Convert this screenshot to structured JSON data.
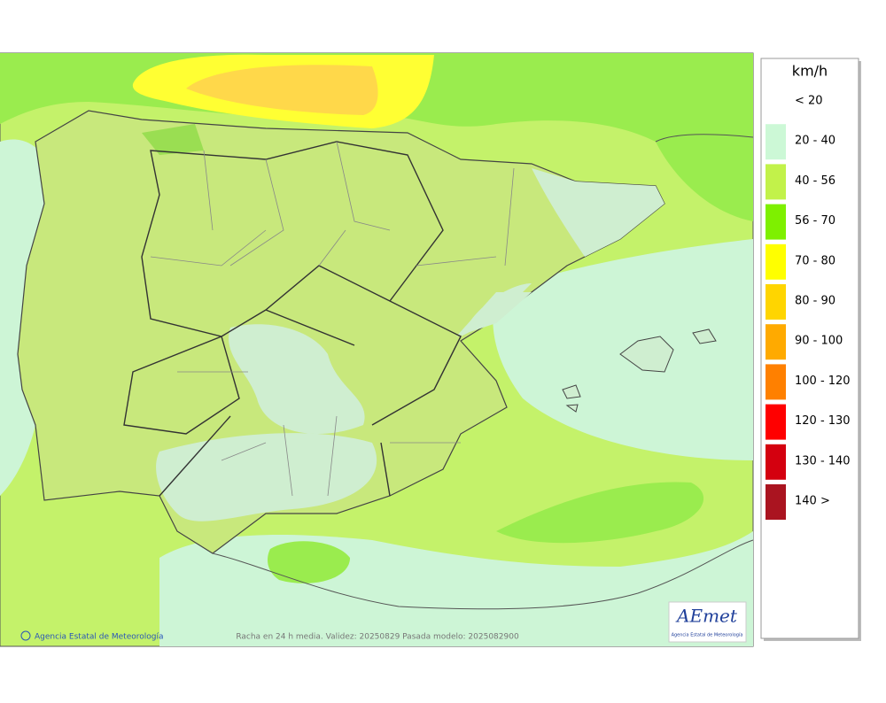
{
  "legend": {
    "title": "km/h",
    "items": [
      {
        "label": "< 20",
        "color": "#ffffff"
      },
      {
        "label": "20 - 40",
        "color": "#ccf8d6"
      },
      {
        "label": "40 - 56",
        "color": "#c2f24a"
      },
      {
        "label": "56 - 70",
        "color": "#7ef000"
      },
      {
        "label": "70 - 80",
        "color": "#ffff00"
      },
      {
        "label": "80 - 90",
        "color": "#ffd500"
      },
      {
        "label": "90 - 100",
        "color": "#ffaa00"
      },
      {
        "label": "100 - 120",
        "color": "#ff8000"
      },
      {
        "label": "120 - 130",
        "color": "#ff0000"
      },
      {
        "label": "130 - 140",
        "color": "#d4000f"
      },
      {
        "label": "140 >",
        "color": "#aa1420"
      }
    ]
  },
  "footer": {
    "credit": "Agencia Estatal de Meteorología",
    "caption": "Racha en 24 h media. Validez: 20250829 Pasada modelo: 2025082900"
  },
  "logo": {
    "name": "AEmet",
    "subtitle": "Agencia Estatal de Meteorología"
  }
}
